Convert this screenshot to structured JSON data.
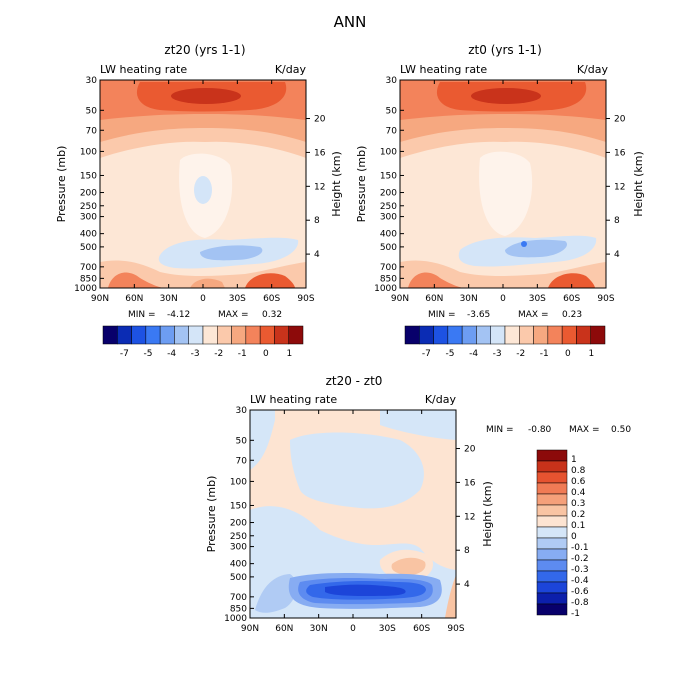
{
  "page_title": "ANN",
  "colors": {
    "zt20_scale": [
      "#08006b",
      "#0b2cb4",
      "#1d52e3",
      "#3a79f3",
      "#6d9df2",
      "#a3c3f3",
      "#d4e5f8",
      "#fde7d6",
      "#fbc9ab",
      "#f6a880",
      "#f3835b",
      "#ea5a31",
      "#c9331b",
      "#8d0a0a"
    ],
    "diff_scale": [
      "#08006b",
      "#0c1fab",
      "#1c45d9",
      "#3368ea",
      "#5d8bf0",
      "#87acf2",
      "#b0cbf4",
      "#d5e6f8",
      "#fde4d2",
      "#f9c4a3",
      "#f5a07a",
      "#f07b55",
      "#e65330",
      "#c8321a",
      "#8c0a0a"
    ]
  },
  "chart_data": [
    {
      "type": "heatmap",
      "panel": "zt20",
      "title": "zt20 (yrs 1-1)",
      "label_left": "LW heating rate",
      "label_right": "K/day",
      "xlabel": "",
      "ylabel": "Pressure (mb)",
      "ylabel_right": "Height (km)",
      "x_ticks": [
        "90N",
        "60N",
        "30N",
        "0",
        "30S",
        "60S",
        "90S"
      ],
      "x_values": [
        90,
        60,
        30,
        0,
        -30,
        -60,
        -90
      ],
      "y_ticks": [
        "30",
        "50",
        "70",
        "100",
        "150",
        "200",
        "250",
        "300",
        "400",
        "500",
        "700",
        "850",
        "1000"
      ],
      "y_values": [
        30,
        50,
        70,
        100,
        150,
        200,
        250,
        300,
        400,
        500,
        700,
        850,
        1000
      ],
      "y_right_ticks": [
        "20",
        "16",
        "12",
        "8",
        "4"
      ],
      "ylim": [
        30,
        1000
      ],
      "min_label": "MIN =",
      "min_value": "-4.12",
      "max_label": "MAX =",
      "max_value": "0.32",
      "colorbar_labels": [
        "-7",
        "-5",
        "-4",
        "-3",
        "-2",
        "-1",
        "0",
        "1"
      ],
      "colorbar_orientation": "horizontal"
    },
    {
      "type": "heatmap",
      "panel": "zt0",
      "title": "zt0 (yrs 1-1)",
      "label_left": "LW heating rate",
      "label_right": "K/day",
      "xlabel": "",
      "ylabel": "Pressure (mb)",
      "ylabel_right": "Height (km)",
      "x_ticks": [
        "90N",
        "60N",
        "30N",
        "0",
        "30S",
        "60S",
        "90S"
      ],
      "x_values": [
        90,
        60,
        30,
        0,
        -30,
        -60,
        -90
      ],
      "y_ticks": [
        "30",
        "50",
        "70",
        "100",
        "150",
        "200",
        "250",
        "300",
        "400",
        "500",
        "700",
        "850",
        "1000"
      ],
      "y_values": [
        30,
        50,
        70,
        100,
        150,
        200,
        250,
        300,
        400,
        500,
        700,
        850,
        1000
      ],
      "y_right_ticks": [
        "20",
        "16",
        "12",
        "8",
        "4"
      ],
      "ylim": [
        30,
        1000
      ],
      "min_label": "MIN =",
      "min_value": "-3.65",
      "max_label": "MAX =",
      "max_value": "0.23",
      "colorbar_labels": [
        "-7",
        "-5",
        "-4",
        "-3",
        "-2",
        "-1",
        "0",
        "1"
      ],
      "colorbar_orientation": "horizontal"
    },
    {
      "type": "heatmap",
      "panel": "diff",
      "title": "zt20 - zt0",
      "label_left": "LW heating rate",
      "label_right": "K/day",
      "xlabel": "",
      "ylabel": "Pressure (mb)",
      "ylabel_right": "Height (km)",
      "x_ticks": [
        "90N",
        "60N",
        "30N",
        "0",
        "30S",
        "60S",
        "90S"
      ],
      "x_values": [
        90,
        60,
        30,
        0,
        -30,
        -60,
        -90
      ],
      "y_ticks": [
        "30",
        "50",
        "70",
        "100",
        "150",
        "200",
        "250",
        "300",
        "400",
        "500",
        "700",
        "850",
        "1000"
      ],
      "y_values": [
        30,
        50,
        70,
        100,
        150,
        200,
        250,
        300,
        400,
        500,
        700,
        850,
        1000
      ],
      "y_right_ticks": [
        "20",
        "16",
        "12",
        "8",
        "4"
      ],
      "ylim": [
        30,
        1000
      ],
      "min_label": "MIN =",
      "min_value": "-0.80",
      "max_label": "MAX =",
      "max_value": "0.50",
      "colorbar_labels": [
        "1",
        "0.8",
        "0.6",
        "0.4",
        "0.3",
        "0.2",
        "0.1",
        "0",
        "-0.1",
        "-0.2",
        "-0.3",
        "-0.4",
        "-0.6",
        "-0.8",
        "-1"
      ],
      "colorbar_orientation": "vertical"
    }
  ]
}
